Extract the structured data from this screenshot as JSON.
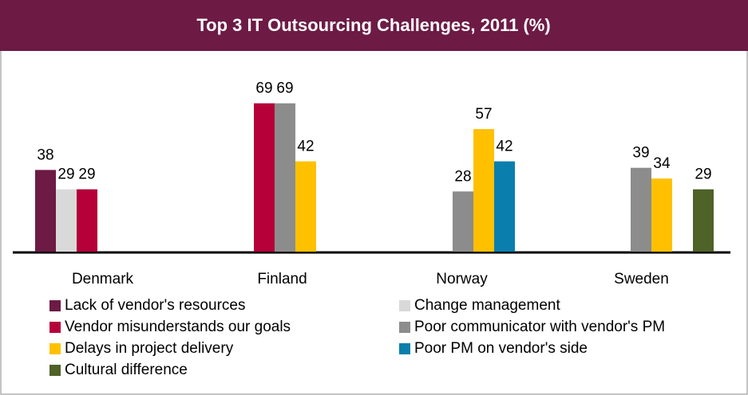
{
  "chart_data": {
    "type": "bar",
    "title": "Top 3 IT Outsourcing Challenges, 2011 (%)",
    "categories": [
      "Denmark",
      "Finland",
      "Norway",
      "Sweden"
    ],
    "series": [
      {
        "name": "Lack of vendor's resources",
        "color": "#6d1a45",
        "values": [
          38,
          null,
          null,
          null
        ]
      },
      {
        "name": "Change management",
        "color": "#d9d9d9",
        "values": [
          29,
          null,
          null,
          null
        ]
      },
      {
        "name": "Vendor misunderstands our goals",
        "color": "#b5003a",
        "values": [
          29,
          69,
          null,
          null
        ]
      },
      {
        "name": "Poor communicator with vendor's PM",
        "color": "#8c8c8c",
        "values": [
          null,
          69,
          28,
          39
        ]
      },
      {
        "name": "Delays in project delivery",
        "color": "#ffc000",
        "values": [
          null,
          42,
          57,
          34
        ]
      },
      {
        "name": "Poor PM on vendor's side",
        "color": "#0a7fae",
        "values": [
          null,
          null,
          42,
          null
        ]
      },
      {
        "name": "Cultural difference",
        "color": "#4f6228",
        "values": [
          null,
          null,
          null,
          29
        ]
      }
    ],
    "ylim": [
      0,
      80
    ]
  }
}
